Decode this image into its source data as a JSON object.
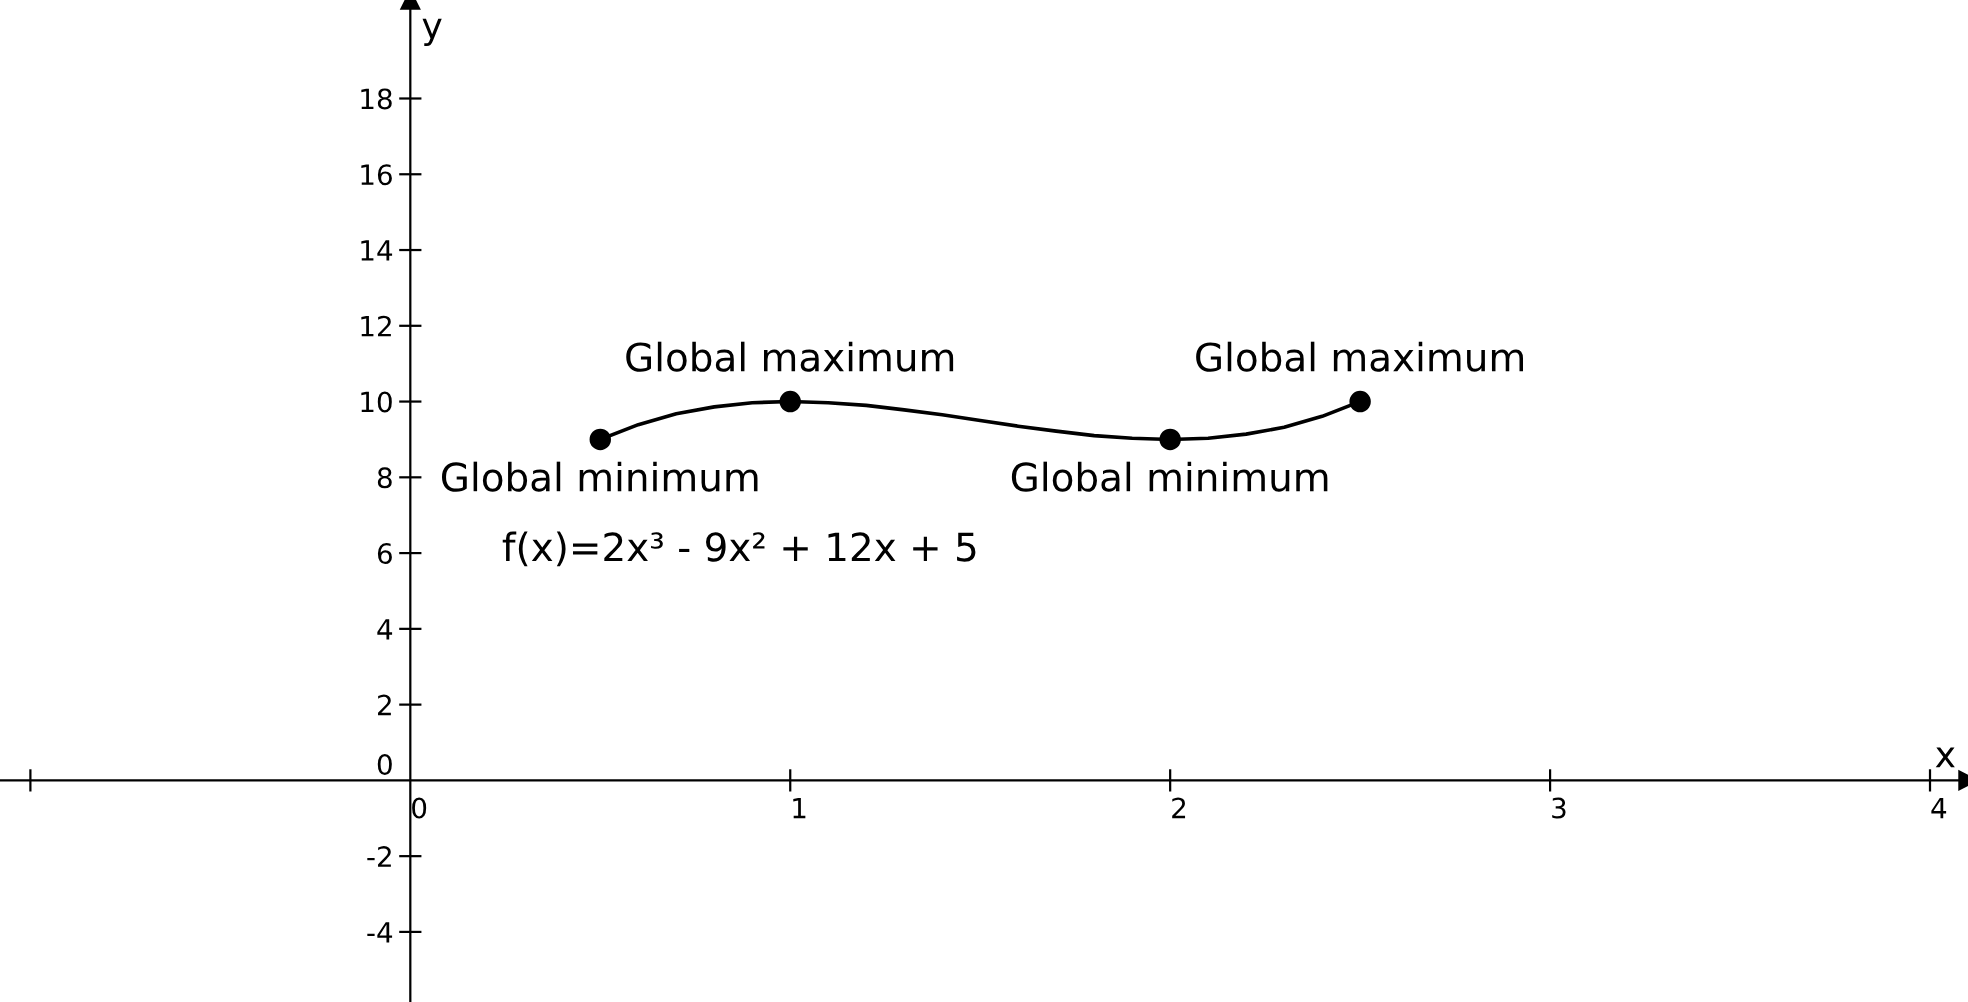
{
  "chart_data": {
    "type": "line",
    "xlabel": "x",
    "ylabel": "y",
    "xlim": [
      -1.08,
      4.1
    ],
    "ylim": [
      -5.85,
      20.6
    ],
    "xticks": [
      {
        "value": -1,
        "label": null
      },
      0,
      1,
      2,
      3,
      4
    ],
    "yticks": [
      -4,
      -2,
      0,
      2,
      4,
      6,
      8,
      10,
      12,
      14,
      16,
      18
    ],
    "grid": false,
    "legend": false,
    "series": [
      {
        "color": "#000000",
        "marker": "none",
        "line_style": "solid",
        "x": [
          0.5,
          0.6,
          0.7,
          0.8,
          0.9,
          1.0,
          1.1,
          1.2,
          1.3,
          1.4,
          1.5,
          1.6,
          1.7,
          1.8,
          1.9,
          2.0,
          2.1,
          2.2,
          2.3,
          2.4,
          2.5
        ],
        "values": [
          9,
          9.39,
          9.68,
          9.86,
          9.97,
          10,
          9.97,
          9.9,
          9.78,
          9.65,
          9.5,
          9.35,
          9.22,
          9.1,
          9.03,
          9,
          9.03,
          9.14,
          9.32,
          9.61,
          10
        ]
      },
      {
        "type": "scatter",
        "color": "#000000",
        "marker": "circle",
        "x": [
          0.5,
          1,
          2,
          2.5
        ],
        "values": [
          9,
          10,
          9,
          10
        ]
      }
    ],
    "annotations": [
      {
        "text": "Global minimum",
        "x": 0.5,
        "y": 9
      },
      {
        "text": "Global maximum",
        "x": 1,
        "y": 10
      },
      {
        "text": "Global minimum",
        "x": 2,
        "y": 9
      },
      {
        "text": "Global maximum",
        "x": 2.5,
        "y": 10
      },
      "f(x)=2x³ - 9x² + 12x + 5"
    ]
  }
}
